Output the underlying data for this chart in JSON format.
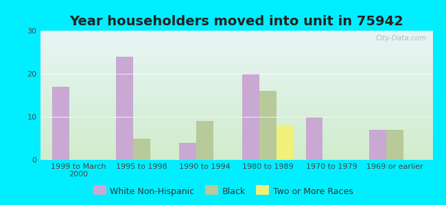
{
  "title": "Year householders moved into unit in 75942",
  "categories": [
    "1999 to March\n2000",
    "1995 to 1998",
    "1990 to 1994",
    "1980 to 1989",
    "1970 to 1979",
    "1969 or earlier"
  ],
  "series": {
    "White Non-Hispanic": [
      17,
      24,
      4,
      20,
      10,
      7
    ],
    "Black": [
      0,
      5,
      9,
      16,
      0,
      7
    ],
    "Two or More Races": [
      0,
      0,
      0,
      8,
      0,
      0
    ]
  },
  "colors": {
    "White Non-Hispanic": "#c9a8d4",
    "Black": "#b8c99a",
    "Two or More Races": "#f0f07a"
  },
  "ylim": [
    0,
    30
  ],
  "yticks": [
    0,
    10,
    20,
    30
  ],
  "background_outer": "#00eeff",
  "gradient_top": "#e8f5f5",
  "gradient_bottom": "#d0edcc",
  "bar_width": 0.27,
  "title_fontsize": 14,
  "tick_fontsize": 8,
  "legend_fontsize": 9,
  "watermark": "City-Data.com"
}
